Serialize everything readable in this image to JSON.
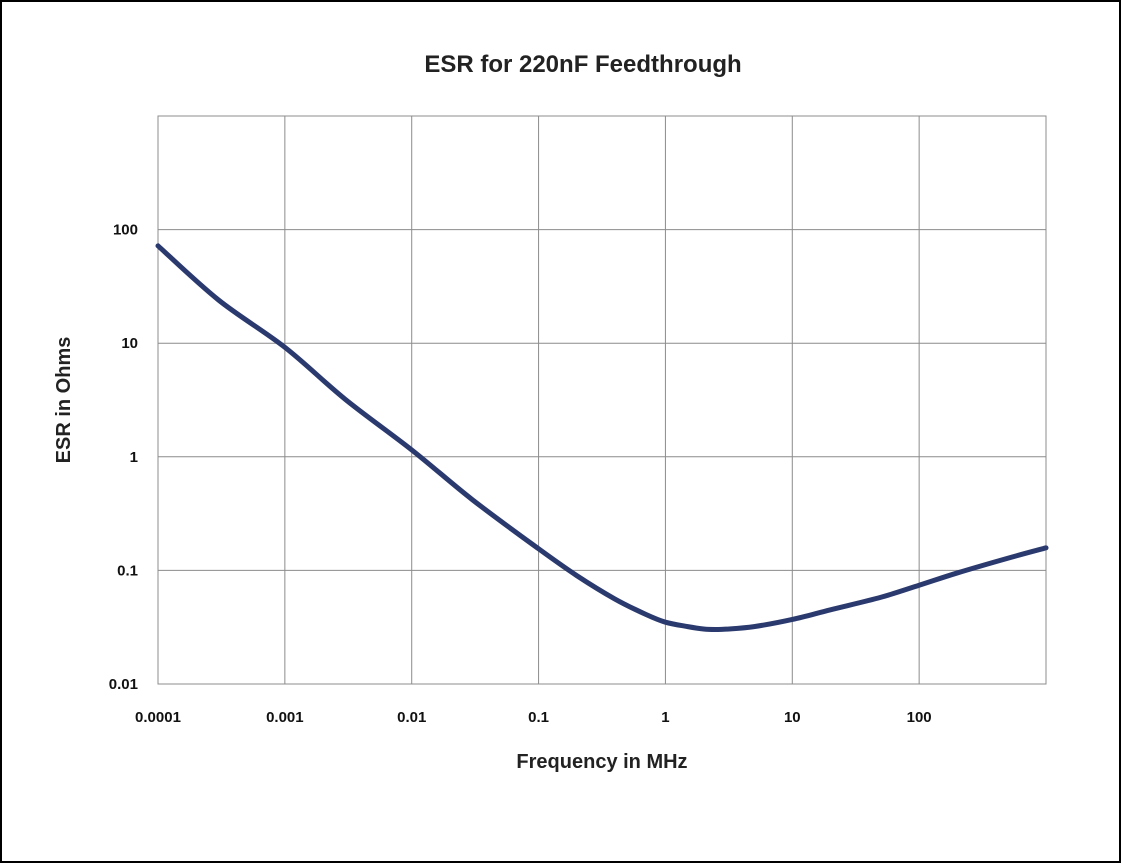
{
  "chart_data": {
    "type": "line",
    "title": "ESR for 220nF Feedthrough",
    "xlabel": "Frequency in MHz",
    "ylabel": "ESR in Ohms",
    "xscale": "log",
    "yscale": "log",
    "xlim": [
      0.0001,
      1000
    ],
    "ylim": [
      0.01,
      1000
    ],
    "grid": true,
    "x_ticks": [
      "0.0001",
      "0.001",
      "0.01",
      "0.1",
      "1",
      "10",
      "100"
    ],
    "y_ticks": [
      "0.01",
      "0.1",
      "1",
      "10",
      "100"
    ],
    "line_color": "#2b3a6e",
    "series": [
      {
        "x": [
          0.0001,
          0.0003,
          0.001,
          0.003,
          0.01,
          0.03,
          0.1,
          0.2,
          0.4,
          0.7,
          1,
          1.5,
          2,
          2.5,
          3,
          5,
          10,
          20,
          50,
          100,
          200,
          500,
          1000
        ],
        "values": [
          72,
          24,
          9.2,
          3.2,
          1.15,
          0.42,
          0.155,
          0.09,
          0.056,
          0.041,
          0.035,
          0.032,
          0.0305,
          0.0302,
          0.0304,
          0.032,
          0.037,
          0.045,
          0.058,
          0.074,
          0.095,
          0.128,
          0.158
        ]
      }
    ]
  }
}
